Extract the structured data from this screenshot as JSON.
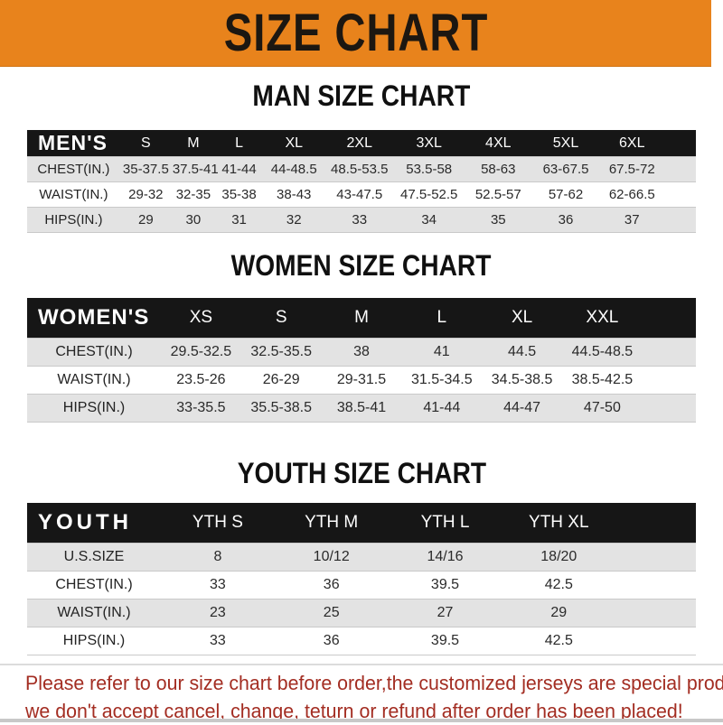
{
  "banner": {
    "title": "SIZE CHART"
  },
  "sections": [
    {
      "heading": "MAN SIZE CHART",
      "table": {
        "header": [
          "MEN'S",
          "S",
          "M",
          "L",
          "XL",
          "2XL",
          "3XL",
          "4XL",
          "5XL",
          "6XL"
        ],
        "rows": [
          {
            "label": "CHEST(IN.)",
            "values": [
              "35-37.5",
              "37.5-41",
              "41-44",
              "44-48.5",
              "48.5-53.5",
              "53.5-58",
              "58-63",
              "63-67.5",
              "67.5-72"
            ]
          },
          {
            "label": "WAIST(IN.)",
            "values": [
              "29-32",
              "32-35",
              "35-38",
              "38-43",
              "43-47.5",
              "47.5-52.5",
              "52.5-57",
              "57-62",
              "62-66.5"
            ]
          },
          {
            "label": "HIPS(IN.)",
            "values": [
              "29",
              "30",
              "31",
              "32",
              "33",
              "34",
              "35",
              "36",
              "37"
            ]
          }
        ]
      }
    },
    {
      "heading": "WOMEN SIZE CHART",
      "table": {
        "header": [
          "WOMEN'S",
          "XS",
          "S",
          "M",
          "L",
          "XL",
          "XXL"
        ],
        "rows": [
          {
            "label": "CHEST(IN.)",
            "values": [
              "29.5-32.5",
              "32.5-35.5",
              "38",
              "41",
              "44.5",
              "44.5-48.5"
            ]
          },
          {
            "label": "WAIST(IN.)",
            "values": [
              "23.5-26",
              "26-29",
              "29-31.5",
              "31.5-34.5",
              "34.5-38.5",
              "38.5-42.5"
            ]
          },
          {
            "label": "HIPS(IN.)",
            "values": [
              "33-35.5",
              "35.5-38.5",
              "38.5-41",
              "41-44",
              "44-47",
              "47-50"
            ]
          }
        ]
      }
    },
    {
      "heading": "YOUTH SIZE CHART",
      "table": {
        "header": [
          "YOUTH",
          "YTH S",
          "YTH M",
          "YTH L",
          "YTH XL"
        ],
        "rows": [
          {
            "label": "U.S.SIZE",
            "values": [
              "8",
              "10/12",
              "14/16",
              "18/20"
            ]
          },
          {
            "label": "CHEST(IN.)",
            "values": [
              "33",
              "36",
              "39.5",
              "42.5"
            ]
          },
          {
            "label": "WAIST(IN.)",
            "values": [
              "23",
              "25",
              "27",
              "29"
            ]
          },
          {
            "label": "HIPS(IN.)",
            "values": [
              "33",
              "36",
              "39.5",
              "42.5"
            ]
          }
        ]
      }
    }
  ],
  "footer": {
    "line1": "Please refer to our size chart before order,the customized jerseys are special products,",
    "line2": "we don't accept cancel, change, teturn or refund after order has been placed!"
  },
  "colors": {
    "banner_bg": "#E8831C",
    "header_bg": "#161616",
    "stripe": "#E3E3E3",
    "note_red": "#A32D22"
  }
}
